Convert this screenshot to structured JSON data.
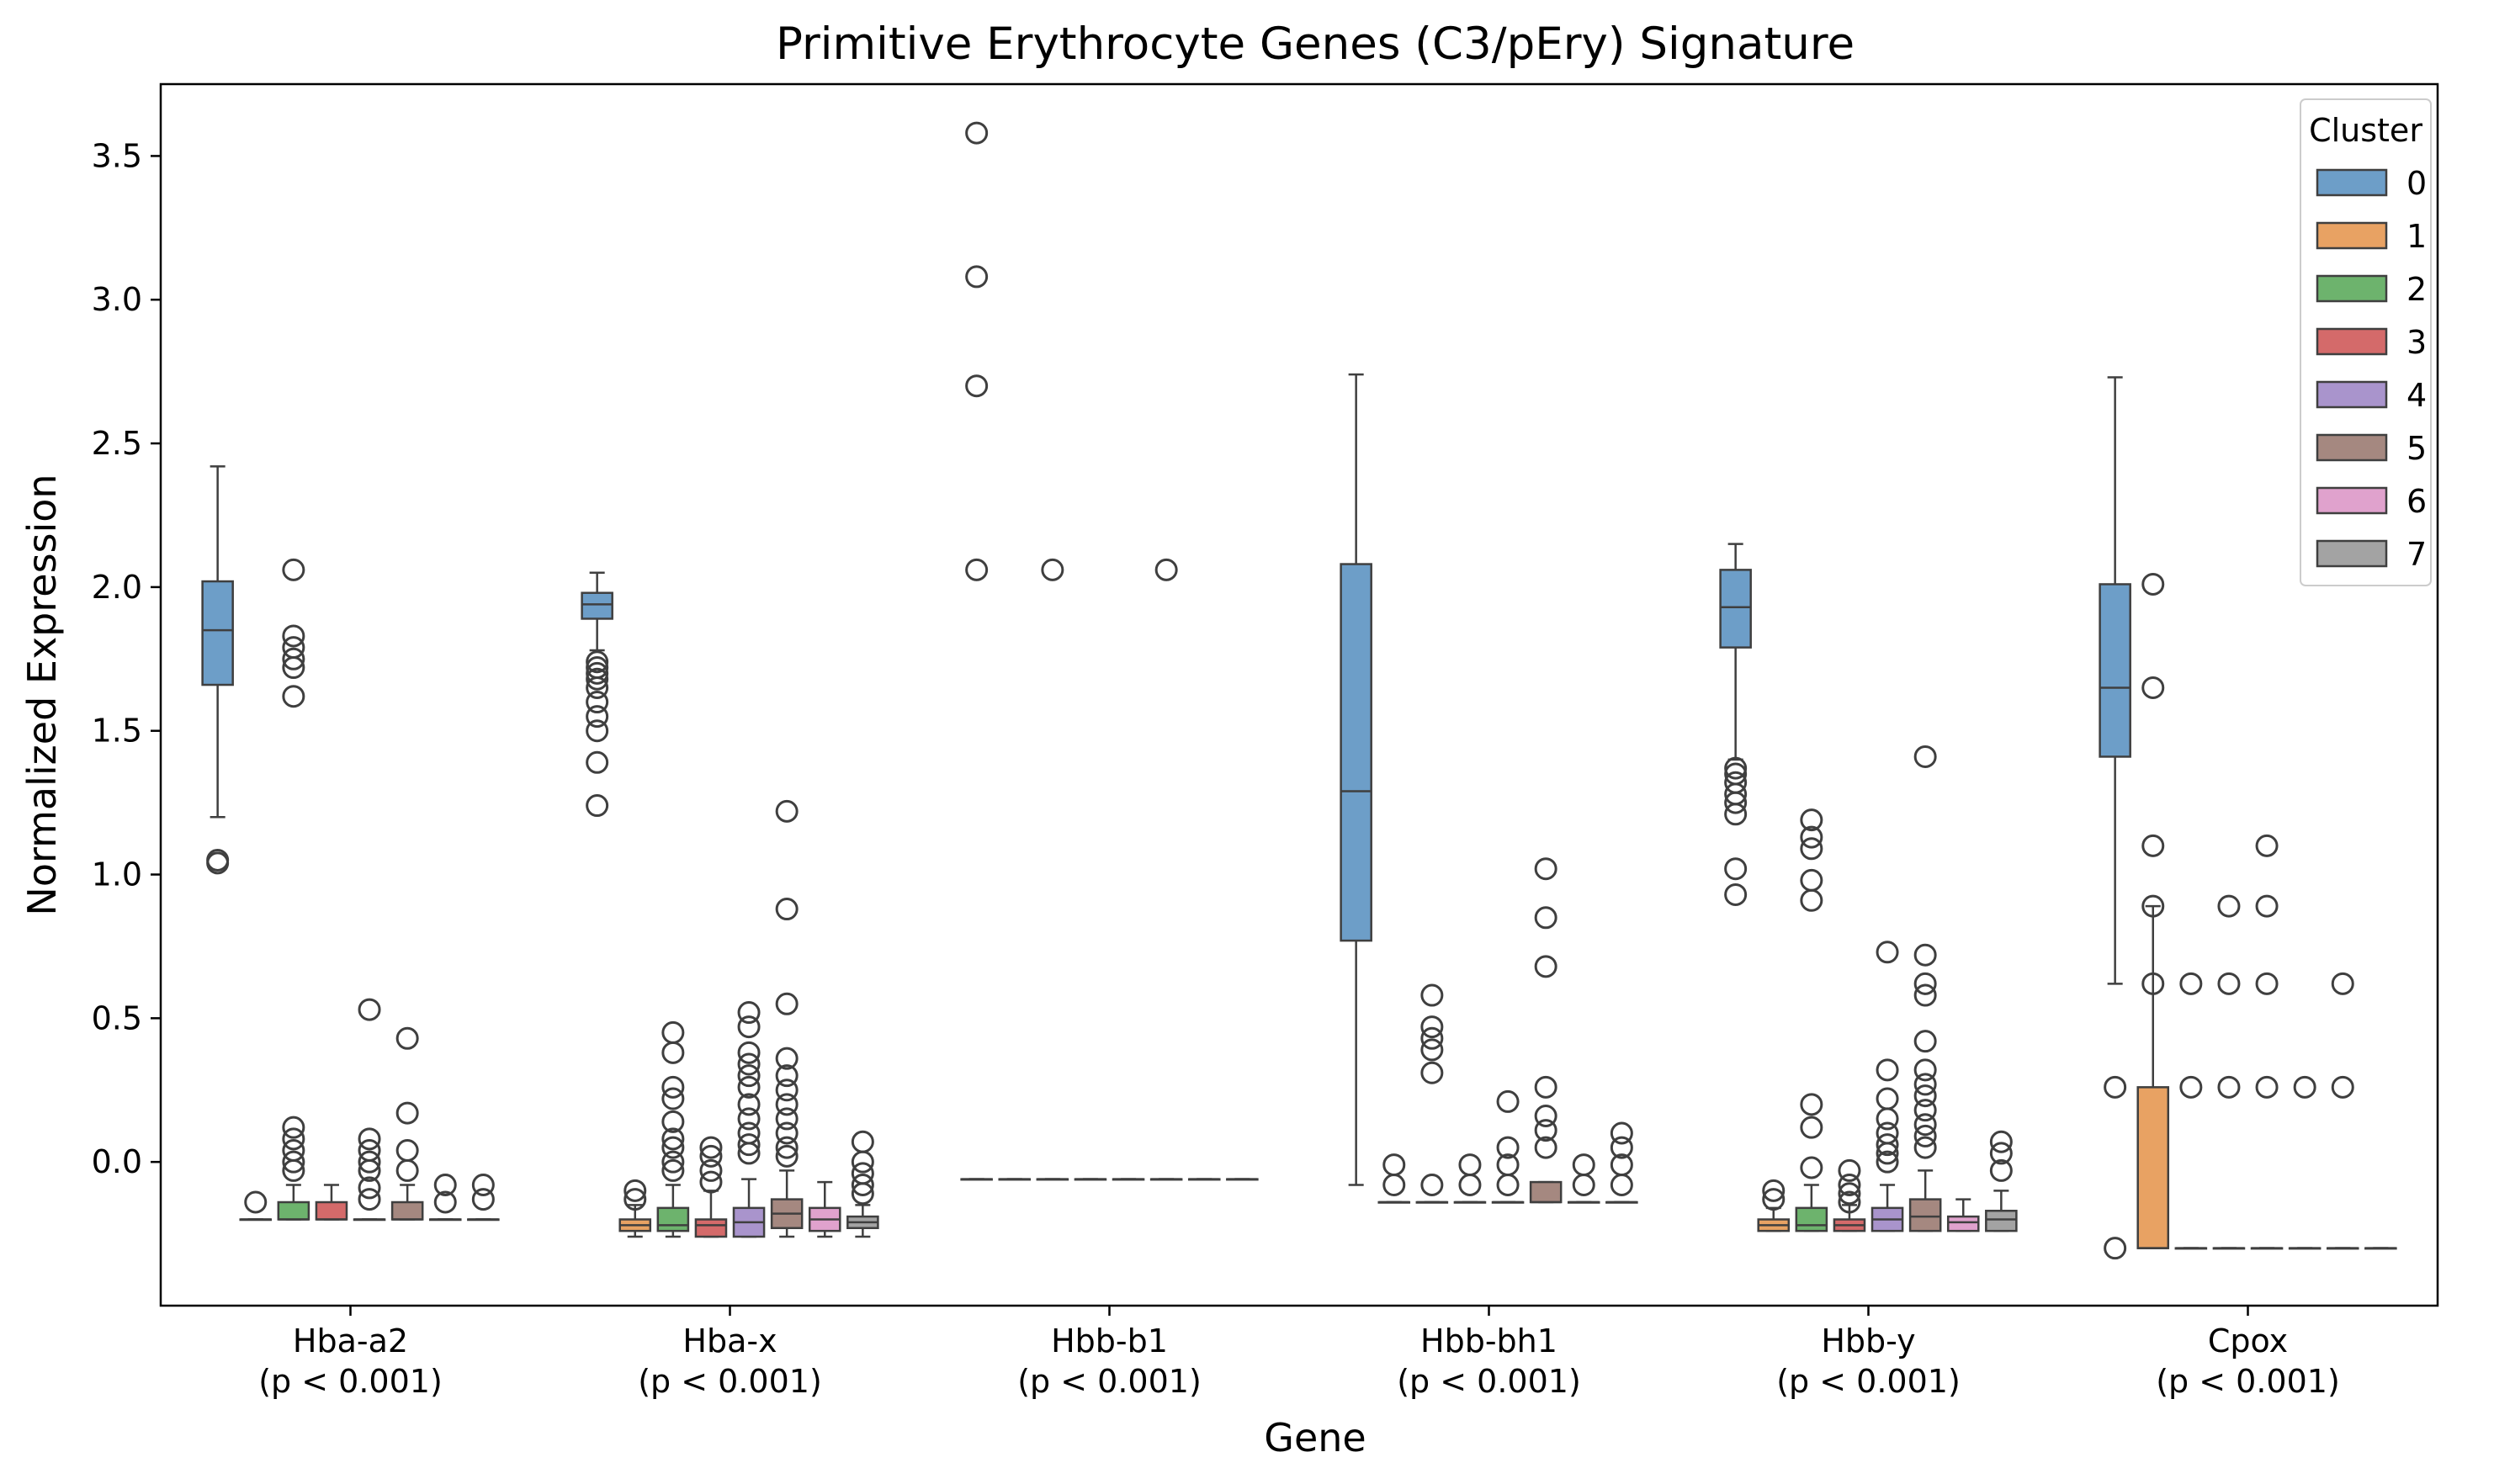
{
  "chart_data": {
    "type": "box",
    "title": "Primitive Erythrocyte Genes (C3/pEry) Signature",
    "xlabel": "Gene",
    "ylabel": "Normalized Expression",
    "ylim": [
      -0.5,
      3.75
    ],
    "yticks": [
      0.0,
      0.5,
      1.0,
      1.5,
      2.0,
      2.5,
      3.0,
      3.5
    ],
    "ytick_labels": [
      "0.0",
      "0.5",
      "1.0",
      "1.5",
      "2.0",
      "2.5",
      "3.0",
      "3.5"
    ],
    "grid": false,
    "legend": {
      "title": "Cluster",
      "position": "top-right"
    },
    "genes": [
      {
        "name": "Hba-a2",
        "pvalue": "(p < 0.001)"
      },
      {
        "name": "Hba-x",
        "pvalue": "(p < 0.001)"
      },
      {
        "name": "Hbb-b1",
        "pvalue": "(p < 0.001)"
      },
      {
        "name": "Hbb-bh1",
        "pvalue": "(p < 0.001)"
      },
      {
        "name": "Hbb-y",
        "pvalue": "(p < 0.001)"
      },
      {
        "name": "Cpox",
        "pvalue": "(p < 0.001)"
      }
    ],
    "series": [
      {
        "name": "0",
        "color": "#6d9ec8"
      },
      {
        "name": "1",
        "color": "#e8a263"
      },
      {
        "name": "2",
        "color": "#6db36d"
      },
      {
        "name": "3",
        "color": "#d46a6a"
      },
      {
        "name": "4",
        "color": "#a994cc"
      },
      {
        "name": "5",
        "color": "#a58880"
      },
      {
        "name": "6",
        "color": "#e0a2cd"
      },
      {
        "name": "7",
        "color": "#a3a3a3"
      }
    ],
    "boxes": [
      [
        {
          "q1": 1.66,
          "med": 1.85,
          "q3": 2.02,
          "lo": 1.2,
          "hi": 2.42,
          "out": [
            1.05,
            1.04
          ]
        },
        {
          "q1": -0.2,
          "med": -0.2,
          "q3": -0.2,
          "lo": -0.2,
          "hi": -0.2,
          "out": [
            -0.14
          ]
        },
        {
          "q1": -0.2,
          "med": -0.2,
          "q3": -0.14,
          "lo": -0.2,
          "hi": -0.08,
          "out": [
            2.06,
            1.83,
            1.79,
            1.75,
            1.72,
            1.62,
            0.12,
            0.08,
            0.04,
            0.0,
            -0.03
          ]
        },
        {
          "q1": -0.2,
          "med": -0.2,
          "q3": -0.14,
          "lo": -0.2,
          "hi": -0.08,
          "out": []
        },
        {
          "q1": -0.2,
          "med": -0.2,
          "q3": -0.2,
          "lo": -0.2,
          "hi": -0.2,
          "out": [
            0.53,
            0.08,
            0.04,
            0.0,
            -0.03,
            -0.09,
            -0.13
          ]
        },
        {
          "q1": -0.2,
          "med": -0.2,
          "q3": -0.14,
          "lo": -0.2,
          "hi": -0.08,
          "out": [
            0.43,
            0.17,
            0.04,
            -0.03
          ]
        },
        {
          "q1": -0.2,
          "med": -0.2,
          "q3": -0.2,
          "lo": -0.2,
          "hi": -0.2,
          "out": [
            -0.08,
            -0.14
          ]
        },
        {
          "q1": -0.2,
          "med": -0.2,
          "q3": -0.2,
          "lo": -0.2,
          "hi": -0.2,
          "out": [
            -0.08,
            -0.13
          ]
        }
      ],
      [
        {
          "q1": 1.89,
          "med": 1.94,
          "q3": 1.98,
          "lo": 1.78,
          "hi": 2.05,
          "out": [
            1.74,
            1.72,
            1.7,
            1.68,
            1.65,
            1.6,
            1.55,
            1.5,
            1.39,
            1.24
          ]
        },
        {
          "q1": -0.24,
          "med": -0.22,
          "q3": -0.2,
          "lo": -0.26,
          "hi": -0.15,
          "out": [
            -0.1,
            -0.13
          ]
        },
        {
          "q1": -0.24,
          "med": -0.22,
          "q3": -0.16,
          "lo": -0.26,
          "hi": -0.08,
          "out": [
            0.45,
            0.38,
            0.26,
            0.22,
            0.14,
            0.08,
            0.05,
            0.0,
            -0.03
          ]
        },
        {
          "q1": -0.26,
          "med": -0.22,
          "q3": -0.2,
          "lo": -0.26,
          "hi": -0.1,
          "out": [
            0.05,
            0.02,
            -0.03,
            -0.07
          ]
        },
        {
          "q1": -0.26,
          "med": -0.21,
          "q3": -0.16,
          "lo": -0.26,
          "hi": -0.06,
          "out": [
            0.52,
            0.47,
            0.38,
            0.34,
            0.3,
            0.26,
            0.2,
            0.15,
            0.1,
            0.06,
            0.03
          ]
        },
        {
          "q1": -0.23,
          "med": -0.18,
          "q3": -0.13,
          "lo": -0.26,
          "hi": -0.03,
          "out": [
            1.22,
            0.88,
            0.55,
            0.36,
            0.3,
            0.25,
            0.2,
            0.15,
            0.1,
            0.05,
            0.02
          ]
        },
        {
          "q1": -0.24,
          "med": -0.2,
          "q3": -0.16,
          "lo": -0.26,
          "hi": -0.07,
          "out": []
        },
        {
          "q1": -0.23,
          "med": -0.21,
          "q3": -0.19,
          "lo": -0.26,
          "hi": -0.15,
          "out": [
            0.07,
            0.0,
            -0.04,
            -0.08,
            -0.11
          ]
        }
      ],
      [
        {
          "q1": -0.06,
          "med": -0.06,
          "q3": -0.06,
          "lo": -0.06,
          "hi": -0.06,
          "out": [
            3.58,
            3.08,
            2.7,
            2.06
          ]
        },
        {
          "q1": -0.06,
          "med": -0.06,
          "q3": -0.06,
          "lo": -0.06,
          "hi": -0.06,
          "out": []
        },
        {
          "q1": -0.06,
          "med": -0.06,
          "q3": -0.06,
          "lo": -0.06,
          "hi": -0.06,
          "out": [
            2.06
          ]
        },
        {
          "q1": -0.06,
          "med": -0.06,
          "q3": -0.06,
          "lo": -0.06,
          "hi": -0.06,
          "out": []
        },
        {
          "q1": -0.06,
          "med": -0.06,
          "q3": -0.06,
          "lo": -0.06,
          "hi": -0.06,
          "out": []
        },
        {
          "q1": -0.06,
          "med": -0.06,
          "q3": -0.06,
          "lo": -0.06,
          "hi": -0.06,
          "out": [
            2.06
          ]
        },
        {
          "q1": -0.06,
          "med": -0.06,
          "q3": -0.06,
          "lo": -0.06,
          "hi": -0.06,
          "out": []
        },
        {
          "q1": -0.06,
          "med": -0.06,
          "q3": -0.06,
          "lo": -0.06,
          "hi": -0.06,
          "out": []
        }
      ],
      [
        {
          "q1": 0.77,
          "med": 1.29,
          "q3": 2.08,
          "lo": -0.08,
          "hi": 2.74,
          "out": []
        },
        {
          "q1": -0.14,
          "med": -0.14,
          "q3": -0.14,
          "lo": -0.14,
          "hi": -0.14,
          "out": [
            -0.01,
            -0.08
          ]
        },
        {
          "q1": -0.14,
          "med": -0.14,
          "q3": -0.14,
          "lo": -0.14,
          "hi": -0.14,
          "out": [
            0.58,
            0.47,
            0.43,
            0.39,
            0.31,
            -0.08
          ]
        },
        {
          "q1": -0.14,
          "med": -0.14,
          "q3": -0.14,
          "lo": -0.14,
          "hi": -0.14,
          "out": [
            -0.01,
            -0.08
          ]
        },
        {
          "q1": -0.14,
          "med": -0.14,
          "q3": -0.14,
          "lo": -0.14,
          "hi": -0.14,
          "out": [
            0.21,
            0.05,
            -0.01,
            -0.08
          ]
        },
        {
          "q1": -0.14,
          "med": -0.14,
          "q3": -0.07,
          "lo": -0.14,
          "hi": -0.07,
          "out": [
            1.02,
            0.85,
            0.68,
            0.26,
            0.16,
            0.11,
            0.05
          ]
        },
        {
          "q1": -0.14,
          "med": -0.14,
          "q3": -0.14,
          "lo": -0.14,
          "hi": -0.14,
          "out": [
            -0.01,
            -0.08
          ]
        },
        {
          "q1": -0.14,
          "med": -0.14,
          "q3": -0.14,
          "lo": -0.14,
          "hi": -0.14,
          "out": [
            0.1,
            0.05,
            -0.01,
            -0.08
          ]
        }
      ],
      [
        {
          "q1": 1.79,
          "med": 1.93,
          "q3": 2.06,
          "lo": 1.4,
          "hi": 2.15,
          "out": [
            1.37,
            1.35,
            1.32,
            1.28,
            1.25,
            1.21,
            1.02,
            0.93
          ]
        },
        {
          "q1": -0.24,
          "med": -0.22,
          "q3": -0.2,
          "lo": -0.24,
          "hi": -0.16,
          "out": [
            -0.1,
            -0.13
          ]
        },
        {
          "q1": -0.24,
          "med": -0.22,
          "q3": -0.16,
          "lo": -0.24,
          "hi": -0.08,
          "out": [
            1.19,
            1.13,
            1.09,
            0.98,
            0.91,
            0.2,
            0.12,
            -0.02
          ]
        },
        {
          "q1": -0.24,
          "med": -0.22,
          "q3": -0.2,
          "lo": -0.24,
          "hi": -0.15,
          "out": [
            -0.03,
            -0.08,
            -0.11,
            -0.14
          ]
        },
        {
          "q1": -0.24,
          "med": -0.2,
          "q3": -0.16,
          "lo": -0.24,
          "hi": -0.08,
          "out": [
            0.73,
            0.32,
            0.22,
            0.15,
            0.1,
            0.06,
            0.03,
            0.0
          ]
        },
        {
          "q1": -0.24,
          "med": -0.19,
          "q3": -0.13,
          "lo": -0.24,
          "hi": -0.03,
          "out": [
            1.41,
            0.72,
            0.62,
            0.58,
            0.42,
            0.32,
            0.27,
            0.23,
            0.18,
            0.13,
            0.09,
            0.05
          ]
        },
        {
          "q1": -0.24,
          "med": -0.21,
          "q3": -0.19,
          "lo": -0.24,
          "hi": -0.13,
          "out": []
        },
        {
          "q1": -0.24,
          "med": -0.2,
          "q3": -0.17,
          "lo": -0.24,
          "hi": -0.1,
          "out": [
            0.07,
            0.03,
            -0.03
          ]
        }
      ],
      [
        {
          "q1": 1.41,
          "med": 1.65,
          "q3": 2.01,
          "lo": 0.62,
          "hi": 2.73,
          "out": [
            0.26,
            -0.3
          ]
        },
        {
          "q1": -0.3,
          "med": -0.3,
          "q3": 0.26,
          "lo": -0.3,
          "hi": 0.89,
          "out": [
            2.01,
            1.65,
            1.1,
            0.89,
            0.62
          ]
        },
        {
          "q1": -0.3,
          "med": -0.3,
          "q3": -0.3,
          "lo": -0.3,
          "hi": -0.3,
          "out": [
            0.62,
            0.26
          ]
        },
        {
          "q1": -0.3,
          "med": -0.3,
          "q3": -0.3,
          "lo": -0.3,
          "hi": -0.3,
          "out": [
            0.89,
            0.62,
            0.26
          ]
        },
        {
          "q1": -0.3,
          "med": -0.3,
          "q3": -0.3,
          "lo": -0.3,
          "hi": -0.3,
          "out": [
            1.1,
            0.89,
            0.62,
            0.26
          ]
        },
        {
          "q1": -0.3,
          "med": -0.3,
          "q3": -0.3,
          "lo": -0.3,
          "hi": -0.3,
          "out": [
            0.26
          ]
        },
        {
          "q1": -0.3,
          "med": -0.3,
          "q3": -0.3,
          "lo": -0.3,
          "hi": -0.3,
          "out": [
            0.62,
            0.26
          ]
        },
        {
          "q1": -0.3,
          "med": -0.3,
          "q3": -0.3,
          "lo": -0.3,
          "hi": -0.3,
          "out": []
        }
      ]
    ]
  }
}
